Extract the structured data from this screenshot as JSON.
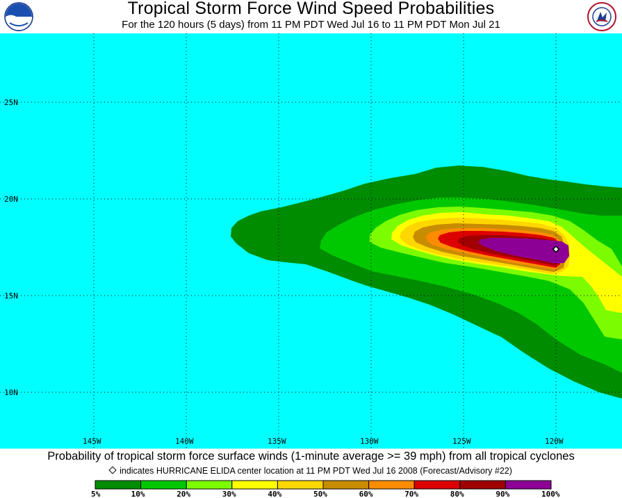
{
  "header": {
    "title": "Tropical Storm Force Wind Speed Probabilities",
    "subtitle": "For the 120 hours (5 days) from 11 PM PDT Wed Jul 16 to 11 PM PDT Mon Jul 21",
    "logo_left": "NOAA",
    "logo_right": "NATIONAL WEATHER SERVICE"
  },
  "map": {
    "ocean_color": "#00FFFF",
    "lat_labels": [
      "25N",
      "20N",
      "15N",
      "10N"
    ],
    "lon_labels": [
      "145W",
      "140W",
      "135W",
      "130W",
      "125W",
      "120W"
    ],
    "storm_center": {
      "lon": -120.0,
      "lat": 17.4
    },
    "probability_bands": [
      {
        "label": "5%",
        "color": "#008C00"
      },
      {
        "label": "10%",
        "color": "#00C800"
      },
      {
        "label": "20%",
        "color": "#7CFC00"
      },
      {
        "label": "30%",
        "color": "#FFFF00"
      },
      {
        "label": "40%",
        "color": "#FFD700"
      },
      {
        "label": "50%",
        "color": "#C88C00"
      },
      {
        "label": "60%",
        "color": "#FF8C00"
      },
      {
        "label": "70%",
        "color": "#DD0000"
      },
      {
        "label": "80%",
        "color": "#A00000"
      },
      {
        "label": "90%",
        "color": "#8C0096"
      }
    ]
  },
  "footer": {
    "caption": "Probability of tropical storm force surface winds (1-minute average >= 39 mph) from all tropical cyclones",
    "note": "indicates HURRICANE ELIDA center location at 11 PM PDT Wed Jul 16 2008 (Forecast/Advisory #22)",
    "legend_labels": [
      "5%",
      "10%",
      "20%",
      "30%",
      "40%",
      "50%",
      "60%",
      "70%",
      "80%",
      "90%",
      "100%"
    ]
  }
}
